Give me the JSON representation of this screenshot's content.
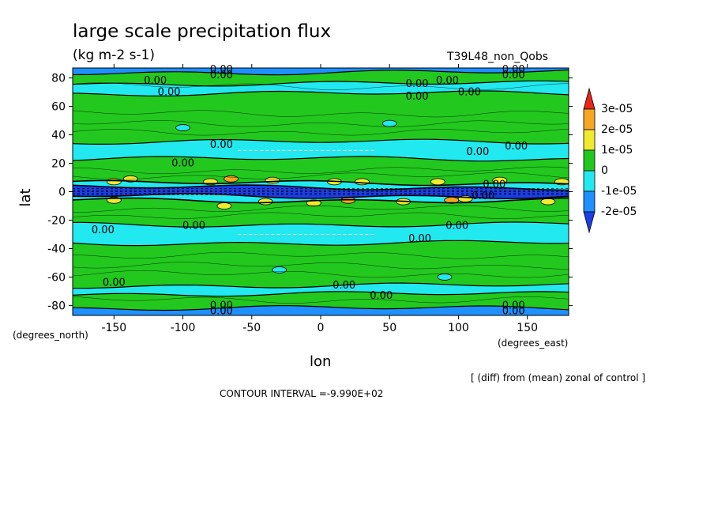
{
  "chart_data": {
    "type": "heatmap",
    "title": "large scale precipitation flux",
    "units": "(kg m-2 s-1)",
    "run_name": "T39L48_non_Qobs",
    "xlabel": "lon",
    "ylabel": "lat",
    "x_unit_label": "(degrees_east)",
    "y_unit_label": "(degrees_north)",
    "xlim": [
      -180,
      180
    ],
    "ylim": [
      -87,
      87
    ],
    "x_ticks": [
      -150,
      -100,
      -50,
      0,
      50,
      100,
      150
    ],
    "y_ticks": [
      80,
      60,
      40,
      20,
      0,
      -20,
      -40,
      -60,
      -80
    ],
    "x_tick_labels": [
      "-150",
      "-100",
      "-50",
      "0",
      "50",
      "100",
      "150"
    ],
    "y_tick_labels": [
      "80",
      "60",
      "40",
      "20",
      "0",
      "-20",
      "-40",
      "-60",
      "-80"
    ],
    "subtitle": "[ (diff) from (mean) zonal of control ]",
    "contour_interval": "CONTOUR INTERVAL =-9.990E+02",
    "contour_label": "0.00",
    "colorbar": {
      "labels": [
        "3e-05",
        "2e-05",
        "1e-05",
        "0",
        "-1e-05",
        "-2e-05"
      ],
      "colors": [
        "#e8261a",
        "#f5a623",
        "#f0ea2e",
        "#22c81e",
        "#22e8f0",
        "#1e90ff",
        "#1c3ee6"
      ]
    },
    "bands": [
      {
        "lat": [
          84,
          87
        ],
        "value": "-2e-05",
        "color": "#1e90ff"
      },
      {
        "lat": [
          76,
          84
        ],
        "value": "0",
        "color": "#22c81e"
      },
      {
        "lat": [
          69,
          76
        ],
        "value": "-1e-05",
        "color": "#22e8f0"
      },
      {
        "lat": [
          35,
          69
        ],
        "value": "0",
        "color": "#22c81e"
      },
      {
        "lat": [
          23,
          35
        ],
        "value": "-1e-05",
        "color": "#22e8f0"
      },
      {
        "lat": [
          6,
          23
        ],
        "value": "0",
        "color": "#22c81e"
      },
      {
        "lat": [
          3,
          6
        ],
        "value": "-1e-05",
        "color": "#22e8f0"
      },
      {
        "lat": [
          -3,
          3
        ],
        "value": "-2e-05",
        "color": "#1c3ee6"
      },
      {
        "lat": [
          -6,
          -3
        ],
        "value": "-1e-05",
        "color": "#22e8f0"
      },
      {
        "lat": [
          -23,
          -6
        ],
        "value": "0",
        "color": "#22c81e"
      },
      {
        "lat": [
          -36,
          -23
        ],
        "value": "-1e-05",
        "color": "#22e8f0"
      },
      {
        "lat": [
          -66,
          -36
        ],
        "value": "0",
        "color": "#22c81e"
      },
      {
        "lat": [
          -72,
          -66
        ],
        "value": "-1e-05",
        "color": "#22e8f0"
      },
      {
        "lat": [
          -82,
          -72
        ],
        "value": "0",
        "color": "#22c81e"
      },
      {
        "lat": [
          -87,
          -82
        ],
        "value": "-2e-05",
        "color": "#1e90ff"
      }
    ],
    "label_positions": [
      {
        "lon": -120,
        "lat": 78
      },
      {
        "lon": -110,
        "lat": 70
      },
      {
        "lon": -72,
        "lat": 86
      },
      {
        "lon": -72,
        "lat": 82
      },
      {
        "lon": 70,
        "lat": 76
      },
      {
        "lon": 92,
        "lat": 78
      },
      {
        "lon": 70,
        "lat": 67
      },
      {
        "lon": 108,
        "lat": 70
      },
      {
        "lon": 140,
        "lat": 86
      },
      {
        "lon": 140,
        "lat": 82
      },
      {
        "lon": -72,
        "lat": 33
      },
      {
        "lon": -100,
        "lat": 20
      },
      {
        "lon": 114,
        "lat": 28
      },
      {
        "lon": 142,
        "lat": 32
      },
      {
        "lon": 126,
        "lat": 5
      },
      {
        "lon": 118,
        "lat": -3
      },
      {
        "lon": -158,
        "lat": -27
      },
      {
        "lon": -92,
        "lat": -24
      },
      {
        "lon": 99,
        "lat": -24
      },
      {
        "lon": 72,
        "lat": -33
      },
      {
        "lon": -150,
        "lat": -64
      },
      {
        "lon": 17,
        "lat": -66
      },
      {
        "lon": 44,
        "lat": -73
      },
      {
        "lon": -72,
        "lat": -80
      },
      {
        "lon": -72,
        "lat": -84
      },
      {
        "lon": 140,
        "lat": -80
      },
      {
        "lon": 140,
        "lat": -84
      }
    ],
    "anomalies": [
      {
        "lon": -150,
        "lat": 7,
        "color": "#f0ea2e"
      },
      {
        "lon": -138,
        "lat": 9,
        "color": "#f0ea2e"
      },
      {
        "lon": -150,
        "lat": -6,
        "color": "#f0ea2e"
      },
      {
        "lon": -80,
        "lat": 7,
        "color": "#f0ea2e"
      },
      {
        "lon": -70,
        "lat": -10,
        "color": "#f0ea2e"
      },
      {
        "lon": -35,
        "lat": 8,
        "color": "#f0ea2e"
      },
      {
        "lon": -40,
        "lat": -7,
        "color": "#f0ea2e"
      },
      {
        "lon": -5,
        "lat": -8,
        "color": "#f0ea2e"
      },
      {
        "lon": 10,
        "lat": 7,
        "color": "#f0ea2e"
      },
      {
        "lon": 30,
        "lat": 7,
        "color": "#f0ea2e"
      },
      {
        "lon": 60,
        "lat": -7,
        "color": "#f0ea2e"
      },
      {
        "lon": 85,
        "lat": 7,
        "color": "#f0ea2e"
      },
      {
        "lon": 105,
        "lat": -5,
        "color": "#f0ea2e"
      },
      {
        "lon": 130,
        "lat": 8,
        "color": "#f0ea2e"
      },
      {
        "lon": 175,
        "lat": 7,
        "color": "#f0ea2e"
      },
      {
        "lon": 165,
        "lat": -7,
        "color": "#f0ea2e"
      },
      {
        "lon": -65,
        "lat": 9,
        "color": "#f5a623"
      },
      {
        "lon": 20,
        "lat": -6,
        "color": "#f5a623"
      },
      {
        "lon": 95,
        "lat": -6,
        "color": "#f5a623"
      },
      {
        "lon": -100,
        "lat": 45,
        "color": "#22e8f0"
      },
      {
        "lon": 50,
        "lat": 48,
        "color": "#22e8f0"
      },
      {
        "lon": -30,
        "lat": -55,
        "color": "#22e8f0"
      },
      {
        "lon": 90,
        "lat": -60,
        "color": "#22e8f0"
      }
    ]
  }
}
